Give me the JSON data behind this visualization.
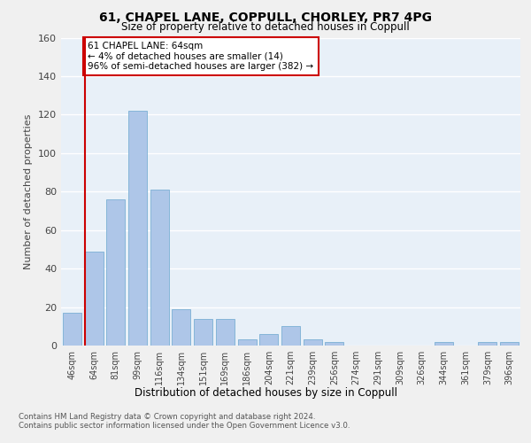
{
  "title_line1": "61, CHAPEL LANE, COPPULL, CHORLEY, PR7 4PG",
  "title_line2": "Size of property relative to detached houses in Coppull",
  "xlabel": "Distribution of detached houses by size in Coppull",
  "ylabel": "Number of detached properties",
  "categories": [
    "46sqm",
    "64sqm",
    "81sqm",
    "99sqm",
    "116sqm",
    "134sqm",
    "151sqm",
    "169sqm",
    "186sqm",
    "204sqm",
    "221sqm",
    "239sqm",
    "256sqm",
    "274sqm",
    "291sqm",
    "309sqm",
    "326sqm",
    "344sqm",
    "361sqm",
    "379sqm",
    "396sqm"
  ],
  "values": [
    17,
    49,
    76,
    122,
    81,
    19,
    14,
    14,
    3,
    6,
    10,
    3,
    2,
    0,
    0,
    0,
    0,
    2,
    0,
    2,
    2
  ],
  "bar_color": "#aec6e8",
  "bar_edge_color": "#7aafd4",
  "annotation_title": "61 CHAPEL LANE: 64sqm",
  "annotation_line2": "← 4% of detached houses are smaller (14)",
  "annotation_line3": "96% of semi-detached houses are larger (382) →",
  "annotation_box_color": "#ffffff",
  "annotation_border_color": "#cc0000",
  "vline_x_index": 1,
  "vline_color": "#cc0000",
  "ylim": [
    0,
    160
  ],
  "yticks": [
    0,
    20,
    40,
    60,
    80,
    100,
    120,
    140,
    160
  ],
  "background_color": "#e8f0f8",
  "grid_color": "#ffffff",
  "fig_background": "#f0f0f0",
  "footer_line1": "Contains HM Land Registry data © Crown copyright and database right 2024.",
  "footer_line2": "Contains public sector information licensed under the Open Government Licence v3.0."
}
